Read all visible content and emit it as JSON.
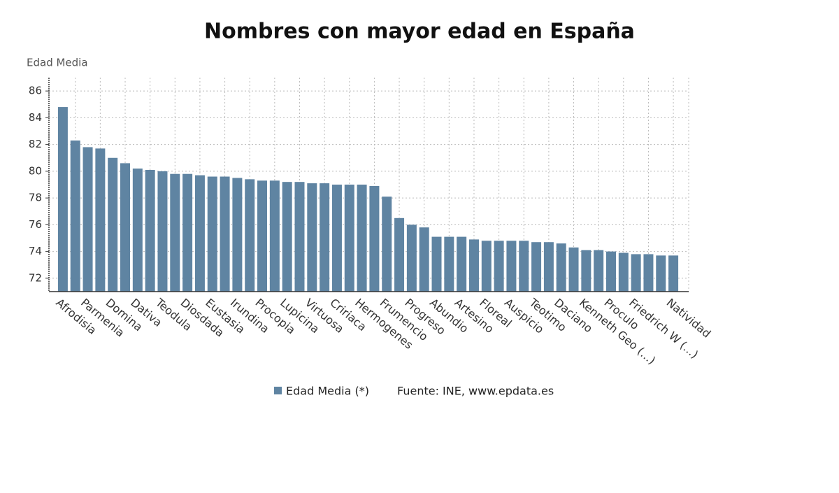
{
  "chart_data": {
    "type": "bar",
    "title": "Nombres con mayor edad en España",
    "y_label": "Edad Media",
    "source": "Fuente: INE, www.epdata.es",
    "categories": [
      "Afrodisia",
      null,
      "Parmenia",
      null,
      "Domina",
      null,
      "Dativa",
      null,
      "Teodula",
      null,
      "Diosdada",
      null,
      "Eustasia",
      null,
      "Irundina",
      null,
      "Procopia",
      null,
      "Lupicina",
      null,
      "Virtuosa",
      null,
      "Cririaca",
      null,
      "Hermogenes",
      null,
      "Frumencio",
      null,
      "Progreso",
      null,
      "Abundio",
      null,
      "Artesino",
      null,
      "Floreal",
      null,
      "Auspicio",
      null,
      "Teotimo",
      null,
      "Daciano",
      null,
      "Kenneth Geo (...)",
      null,
      "Proculo",
      null,
      "Friedrich W (...)",
      null,
      null,
      "Natividad"
    ],
    "series": [
      {
        "name": "Edad Media (*)",
        "color": "#5f84a2",
        "values": [
          84.8,
          82.3,
          81.8,
          81.7,
          81.0,
          80.6,
          80.2,
          80.1,
          80.0,
          79.8,
          79.8,
          79.7,
          79.6,
          79.6,
          79.5,
          79.4,
          79.3,
          79.3,
          79.2,
          79.2,
          79.1,
          79.1,
          79.0,
          79.0,
          79.0,
          78.9,
          78.1,
          76.5,
          76.0,
          75.8,
          75.1,
          75.1,
          75.1,
          74.9,
          74.8,
          74.8,
          74.8,
          74.8,
          74.7,
          74.7,
          74.6,
          74.3,
          74.1,
          74.1,
          74.0,
          73.9,
          73.8,
          73.8,
          73.7,
          73.7
        ]
      }
    ],
    "ylim": [
      71,
      87
    ],
    "yticks": [
      72,
      74,
      76,
      78,
      80,
      82,
      84,
      86
    ],
    "grid": true
  }
}
